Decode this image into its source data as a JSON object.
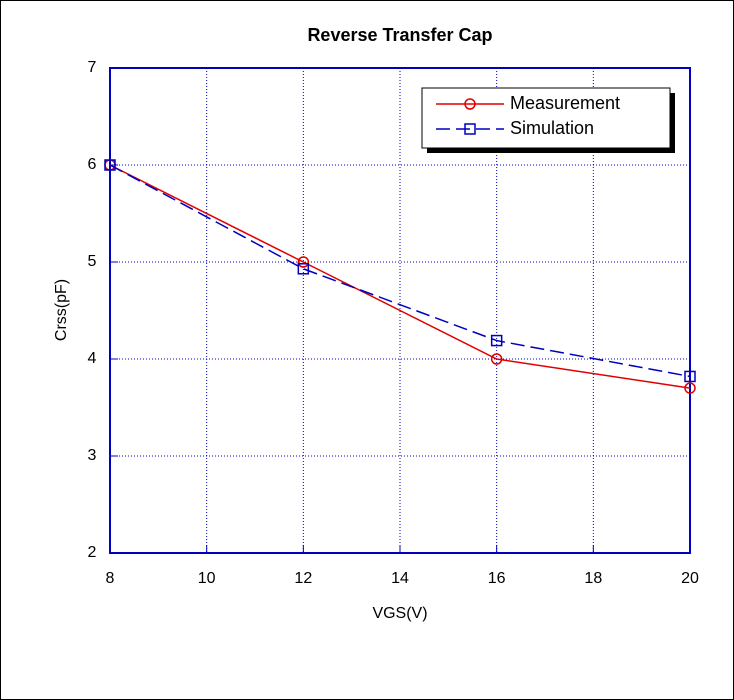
{
  "chart_data": {
    "type": "line",
    "title": "Reverse Transfer Cap",
    "x_label": "VGS(V)",
    "y_label": "Crss(pF)",
    "x": [
      8,
      12,
      16,
      20
    ],
    "series": [
      {
        "name": "Measurement",
        "color": "#e00000",
        "marker": "circle",
        "dash": false,
        "values": [
          6,
          5,
          4,
          3.7
        ]
      },
      {
        "name": "Simulation",
        "color": "#0000c0",
        "marker": "square",
        "dash": true,
        "values": [
          6,
          4.93,
          4.19,
          3.82
        ]
      }
    ],
    "xlim": [
      8,
      20
    ],
    "xticks": [
      8,
      10,
      12,
      14,
      16,
      18,
      20
    ],
    "ylim": [
      2,
      7
    ],
    "yticks": [
      2,
      3,
      4,
      5,
      6,
      7
    ],
    "grid": true,
    "legend": "upper right"
  }
}
